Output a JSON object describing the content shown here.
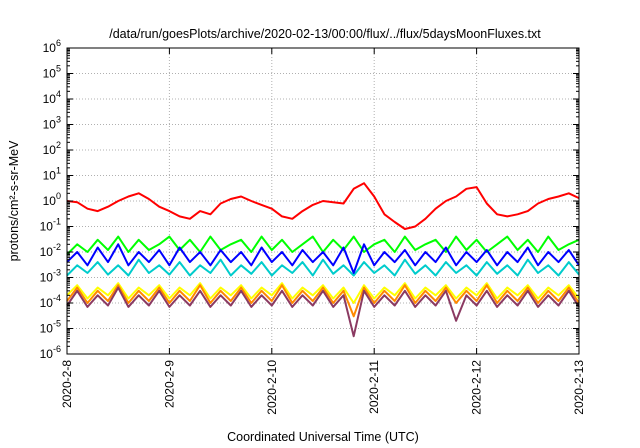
{
  "chart_data": {
    "type": "line",
    "title": "/data/run/goesPlots/archive/2020-02-13/00:00/flux/../flux/5daysMoonFluxes.txt",
    "xlabel": "Coordinated Universal Time (UTC)",
    "ylabel": "protons/cm²-s-sr-MeV",
    "yscale": "log",
    "ylim": [
      1e-06,
      1000000.0
    ],
    "xlim": [
      "2020-2-8",
      "2020-2-13"
    ],
    "x_ticks": [
      "2020-2-8",
      "2020-2-9",
      "2020-2-10",
      "2020-2-11",
      "2020-2-12",
      "2020-2-13"
    ],
    "y_ticks": [
      {
        "base": "10",
        "exp": "-6"
      },
      {
        "base": "10",
        "exp": "-5"
      },
      {
        "base": "10",
        "exp": "-4"
      },
      {
        "base": "10",
        "exp": "-3"
      },
      {
        "base": "10",
        "exp": "-2"
      },
      {
        "base": "10",
        "exp": "-1"
      },
      {
        "base": "10",
        "exp": "0"
      },
      {
        "base": "10",
        "exp": "1"
      },
      {
        "base": "10",
        "exp": "2"
      },
      {
        "base": "10",
        "exp": "3"
      },
      {
        "base": "10",
        "exp": "4"
      },
      {
        "base": "10",
        "exp": "5"
      },
      {
        "base": "10",
        "exp": "6"
      }
    ],
    "grid": true,
    "series": [
      {
        "color": "#ff0000",
        "x": [
          0,
          0.1,
          0.2,
          0.3,
          0.4,
          0.5,
          0.6,
          0.7,
          0.8,
          0.9,
          1.0,
          1.1,
          1.2,
          1.3,
          1.4,
          1.5,
          1.6,
          1.7,
          1.8,
          1.9,
          2.0,
          2.1,
          2.2,
          2.3,
          2.4,
          2.5,
          2.6,
          2.7,
          2.8,
          2.9,
          3.0,
          3.1,
          3.2,
          3.3,
          3.4,
          3.5,
          3.6,
          3.7,
          3.8,
          3.9,
          4.0,
          4.1,
          4.2,
          4.3,
          4.4,
          4.5,
          4.6,
          4.7,
          4.8,
          4.9,
          5.0
        ],
        "y": [
          1.0,
          0.9,
          0.5,
          0.4,
          0.6,
          1.0,
          1.5,
          2.0,
          1.2,
          0.6,
          0.4,
          0.25,
          0.2,
          0.4,
          0.3,
          0.8,
          1.2,
          1.5,
          1.0,
          0.7,
          0.5,
          0.25,
          0.2,
          0.4,
          0.7,
          1.0,
          0.9,
          0.8,
          3.0,
          5.0,
          1.5,
          0.3,
          0.15,
          0.08,
          0.1,
          0.2,
          0.5,
          1.0,
          1.5,
          3.0,
          3.5,
          0.8,
          0.3,
          0.25,
          0.3,
          0.4,
          0.8,
          1.2,
          1.5,
          2.0,
          1.3
        ]
      },
      {
        "color": "#00ff00",
        "x": [
          0,
          0.1,
          0.2,
          0.3,
          0.4,
          0.5,
          0.6,
          0.7,
          0.8,
          0.9,
          1.0,
          1.1,
          1.2,
          1.3,
          1.4,
          1.5,
          1.6,
          1.7,
          1.8,
          1.9,
          2.0,
          2.1,
          2.2,
          2.3,
          2.4,
          2.5,
          2.6,
          2.7,
          2.8,
          2.9,
          3.0,
          3.1,
          3.2,
          3.3,
          3.4,
          3.5,
          3.6,
          3.7,
          3.8,
          3.9,
          4.0,
          4.1,
          4.2,
          4.3,
          4.4,
          4.5,
          4.6,
          4.7,
          4.8,
          4.9,
          5.0
        ],
        "y": [
          0.008,
          0.02,
          0.01,
          0.03,
          0.012,
          0.04,
          0.01,
          0.03,
          0.012,
          0.02,
          0.04,
          0.012,
          0.03,
          0.01,
          0.04,
          0.012,
          0.02,
          0.03,
          0.01,
          0.04,
          0.012,
          0.03,
          0.01,
          0.02,
          0.04,
          0.01,
          0.03,
          0.012,
          0.04,
          0.01,
          0.02,
          0.03,
          0.01,
          0.04,
          0.012,
          0.02,
          0.03,
          0.01,
          0.04,
          0.012,
          0.03,
          0.01,
          0.02,
          0.04,
          0.012,
          0.03,
          0.01,
          0.04,
          0.012,
          0.02,
          0.03
        ]
      },
      {
        "color": "#00cccc",
        "x": [
          0,
          0.1,
          0.2,
          0.3,
          0.4,
          0.5,
          0.6,
          0.7,
          0.8,
          0.9,
          1.0,
          1.1,
          1.2,
          1.3,
          1.4,
          1.5,
          1.6,
          1.7,
          1.8,
          1.9,
          2.0,
          2.1,
          2.2,
          2.3,
          2.4,
          2.5,
          2.6,
          2.7,
          2.8,
          2.9,
          3.0,
          3.1,
          3.2,
          3.3,
          3.4,
          3.5,
          3.6,
          3.7,
          3.8,
          3.9,
          4.0,
          4.1,
          4.2,
          4.3,
          4.4,
          4.5,
          4.6,
          4.7,
          4.8,
          4.9,
          5.0
        ],
        "y": [
          0.0012,
          0.003,
          0.0015,
          0.004,
          0.0013,
          0.003,
          0.0012,
          0.005,
          0.0015,
          0.003,
          0.0013,
          0.004,
          0.0012,
          0.003,
          0.0015,
          0.005,
          0.0012,
          0.003,
          0.0014,
          0.004,
          0.0012,
          0.003,
          0.0015,
          0.004,
          0.0012,
          0.005,
          0.0014,
          0.003,
          0.0012,
          0.004,
          0.0015,
          0.003,
          0.0012,
          0.005,
          0.0014,
          0.003,
          0.0012,
          0.004,
          0.0015,
          0.003,
          0.0012,
          0.004,
          0.0014,
          0.003,
          0.0012,
          0.005,
          0.0015,
          0.003,
          0.0012,
          0.004,
          0.0013
        ]
      },
      {
        "color": "#0000ff",
        "x": [
          0,
          0.1,
          0.2,
          0.3,
          0.4,
          0.5,
          0.6,
          0.7,
          0.8,
          0.9,
          1.0,
          1.1,
          1.2,
          1.3,
          1.4,
          1.5,
          1.6,
          1.7,
          1.8,
          1.9,
          2.0,
          2.1,
          2.2,
          2.3,
          2.4,
          2.5,
          2.6,
          2.7,
          2.8,
          2.9,
          3.0,
          3.1,
          3.2,
          3.3,
          3.4,
          3.5,
          3.6,
          3.7,
          3.8,
          3.9,
          4.0,
          4.1,
          4.2,
          4.3,
          4.4,
          4.5,
          4.6,
          4.7,
          4.8,
          4.9,
          5.0
        ],
        "y": [
          0.004,
          0.01,
          0.003,
          0.015,
          0.004,
          0.02,
          0.003,
          0.01,
          0.004,
          0.012,
          0.003,
          0.015,
          0.004,
          0.01,
          0.003,
          0.012,
          0.004,
          0.01,
          0.003,
          0.015,
          0.004,
          0.01,
          0.003,
          0.012,
          0.004,
          0.01,
          0.003,
          0.015,
          0.0015,
          0.02,
          0.003,
          0.01,
          0.004,
          0.012,
          0.003,
          0.01,
          0.004,
          0.015,
          0.003,
          0.01,
          0.004,
          0.012,
          0.003,
          0.01,
          0.004,
          0.015,
          0.003,
          0.01,
          0.004,
          0.012,
          0.003
        ]
      },
      {
        "color": "#ffff00",
        "x": [
          0,
          0.1,
          0.2,
          0.3,
          0.4,
          0.5,
          0.6,
          0.7,
          0.8,
          0.9,
          1.0,
          1.1,
          1.2,
          1.3,
          1.4,
          1.5,
          1.6,
          1.7,
          1.8,
          1.9,
          2.0,
          2.1,
          2.2,
          2.3,
          2.4,
          2.5,
          2.6,
          2.7,
          2.8,
          2.9,
          3.0,
          3.1,
          3.2,
          3.3,
          3.4,
          3.5,
          3.6,
          3.7,
          3.8,
          3.9,
          4.0,
          4.1,
          4.2,
          4.3,
          4.4,
          4.5,
          4.6,
          4.7,
          4.8,
          4.9,
          5.0
        ],
        "y": [
          0.0002,
          0.0005,
          0.00015,
          0.0004,
          0.0002,
          0.0006,
          0.00015,
          0.0004,
          0.0002,
          0.0005,
          0.00015,
          0.0004,
          0.0002,
          0.0006,
          0.00015,
          0.0004,
          0.0002,
          0.0005,
          0.00015,
          0.0004,
          0.0002,
          0.0006,
          0.00015,
          0.0004,
          0.0002,
          0.0005,
          0.00015,
          0.0004,
          0.0001,
          0.0005,
          0.00015,
          0.0004,
          0.0002,
          0.0006,
          0.00015,
          0.0004,
          0.0002,
          0.0005,
          0.00015,
          0.0004,
          0.0002,
          0.0006,
          0.00015,
          0.0004,
          0.0002,
          0.0005,
          0.00015,
          0.0004,
          0.0002,
          0.0005,
          0.00015
        ]
      },
      {
        "color": "#ff8800",
        "x": [
          0,
          0.1,
          0.2,
          0.3,
          0.4,
          0.5,
          0.6,
          0.7,
          0.8,
          0.9,
          1.0,
          1.1,
          1.2,
          1.3,
          1.4,
          1.5,
          1.6,
          1.7,
          1.8,
          1.9,
          2.0,
          2.1,
          2.2,
          2.3,
          2.4,
          2.5,
          2.6,
          2.7,
          2.8,
          2.9,
          3.0,
          3.1,
          3.2,
          3.3,
          3.4,
          3.5,
          3.6,
          3.7,
          3.8,
          3.9,
          4.0,
          4.1,
          4.2,
          4.3,
          4.4,
          4.5,
          4.6,
          4.7,
          4.8,
          4.9,
          5.0
        ],
        "y": [
          0.00012,
          0.0004,
          0.0001,
          0.0003,
          0.00012,
          0.0005,
          0.0001,
          0.0003,
          0.00012,
          0.0004,
          0.0001,
          0.0003,
          0.00012,
          0.0005,
          0.0001,
          0.0003,
          0.00012,
          0.0004,
          0.0001,
          0.0003,
          0.00012,
          0.0005,
          0.0001,
          0.0003,
          0.00012,
          0.0004,
          0.0001,
          0.0003,
          3e-05,
          0.0004,
          0.0001,
          0.0003,
          0.00012,
          0.0005,
          0.0001,
          0.0003,
          0.00012,
          0.0004,
          0.0001,
          0.0003,
          0.00012,
          0.0005,
          0.0001,
          0.0003,
          0.00012,
          0.0004,
          0.0001,
          0.0003,
          0.00012,
          0.0004,
          0.0001
        ]
      },
      {
        "color": "#8b3a62",
        "x": [
          0,
          0.1,
          0.2,
          0.3,
          0.4,
          0.5,
          0.6,
          0.7,
          0.8,
          0.9,
          1.0,
          1.1,
          1.2,
          1.3,
          1.4,
          1.5,
          1.6,
          1.7,
          1.8,
          1.9,
          2.0,
          2.1,
          2.2,
          2.3,
          2.4,
          2.5,
          2.6,
          2.7,
          2.8,
          2.9,
          3.0,
          3.1,
          3.2,
          3.3,
          3.4,
          3.5,
          3.6,
          3.7,
          3.8,
          3.9,
          4.0,
          4.1,
          4.2,
          4.3,
          4.4,
          4.5,
          4.6,
          4.7,
          4.8,
          4.9,
          5.0
        ],
        "y": [
          8e-05,
          0.0003,
          7e-05,
          0.0002,
          8e-05,
          0.0004,
          7e-05,
          0.0002,
          8e-05,
          0.0003,
          7e-05,
          0.0002,
          8e-05,
          0.0003,
          7e-05,
          0.0002,
          8e-05,
          0.0003,
          7e-05,
          0.0002,
          8e-05,
          0.0003,
          7e-05,
          0.0002,
          8e-05,
          0.0003,
          7e-05,
          0.0002,
          5e-06,
          0.0003,
          7e-05,
          0.0002,
          8e-05,
          0.0003,
          7e-05,
          0.0002,
          8e-05,
          0.0003,
          2e-05,
          0.0002,
          8e-05,
          0.0003,
          7e-05,
          0.0002,
          8e-05,
          0.0003,
          7e-05,
          0.0002,
          8e-05,
          0.0003,
          7e-05
        ]
      }
    ]
  }
}
